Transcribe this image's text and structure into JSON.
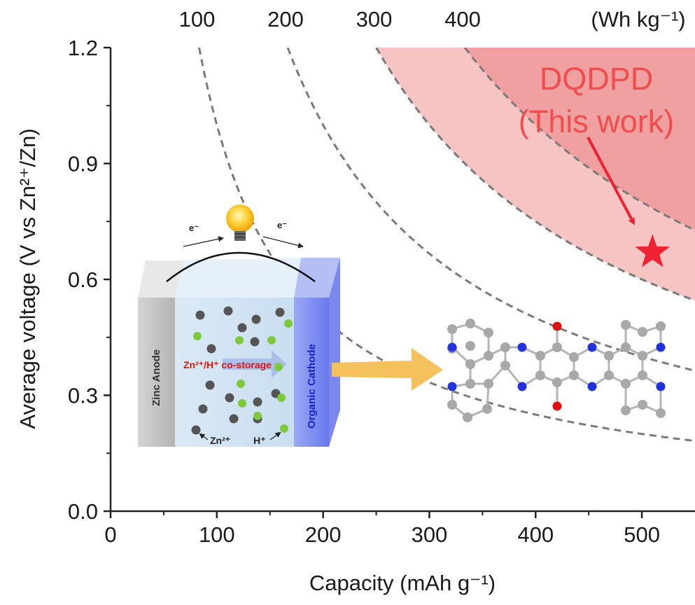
{
  "chart_data": {
    "type": "scatter",
    "xlabel": "Capacity (mAh g⁻¹)",
    "ylabel": "Average voltage (V vs Zn²⁺/Zn)",
    "xlim": [
      0,
      550
    ],
    "ylim": [
      0,
      1.2
    ],
    "x_ticks": [
      "0",
      "100",
      "200",
      "300",
      "400",
      "500"
    ],
    "y_ticks": [
      "0.0",
      "0.3",
      "0.6",
      "0.9",
      "1.2"
    ],
    "energy_density_lines": [
      {
        "label": "100",
        "value": 100
      },
      {
        "label": "200",
        "value": 200
      },
      {
        "label": "300",
        "value": 300
      },
      {
        "label": "400",
        "value": 400
      }
    ],
    "energy_unit_label": "(Wh kg⁻¹)",
    "points": [
      {
        "x": 510,
        "y": 0.67,
        "label": "DQDPD",
        "sublabel": "(This work)",
        "marker": "star",
        "color": "#ee2233"
      }
    ],
    "shaded_regions": [
      {
        "min_energy": 300,
        "color": "#f7c4c4"
      },
      {
        "min_energy": 400,
        "color": "#f0a0a0"
      }
    ]
  },
  "inset": {
    "anode_label": "Zinc Anode",
    "cathode_label": "Organic Cathode",
    "costorage_label": "Zn²⁺/H⁺ co-storage",
    "electron_label": "e⁻",
    "zn_ion_label": "Zn²⁺",
    "h_ion_label": "H⁺"
  },
  "colors": {
    "star": "#ee2233",
    "callout_text": "#f24d4d",
    "dashed": "#7a7a7a",
    "zn_ion": "#555555",
    "h_ion": "#7ec93b",
    "nitrogen": "#2233dd",
    "oxygen": "#dd1111",
    "carbon": "#a8a8a8",
    "arrow_orange": "#f5c15c"
  }
}
